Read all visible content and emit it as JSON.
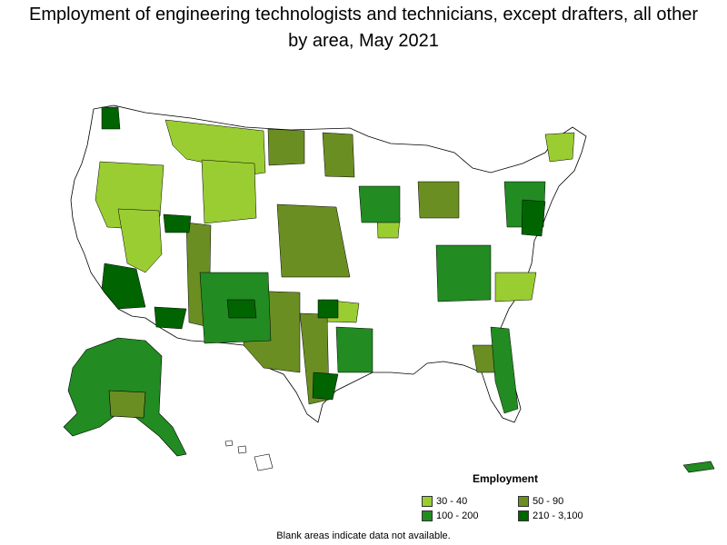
{
  "title": "Employment of engineering technologists and technicians, except drafters, all other by area, May 2021",
  "legend": {
    "title": "Employment",
    "items": [
      {
        "label": "30 - 40",
        "color": "#9acd32"
      },
      {
        "label": "50 - 90",
        "color": "#6b8e23"
      },
      {
        "label": "100 - 200",
        "color": "#228b22"
      },
      {
        "label": "210 - 3,100",
        "color": "#006400"
      }
    ]
  },
  "note": "Blank areas indicate data not available.",
  "colors": {
    "blank": "#ffffff",
    "border": "#000000"
  }
}
